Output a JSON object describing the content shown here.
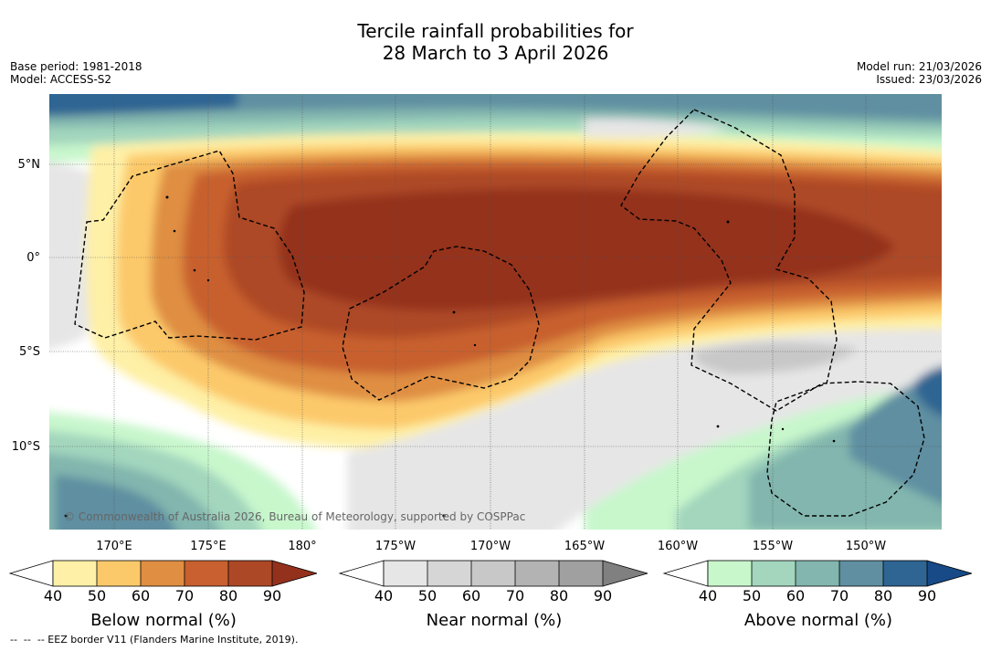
{
  "title": {
    "line1": "Tercile rainfall probabilities for",
    "line2": "28 March to 3 April 2026"
  },
  "meta": {
    "base_period": "Base period: 1981-2018",
    "model": "Model: ACCESS-S2",
    "model_run": "Model run: 21/03/2026",
    "issued": "Issued: 23/03/2026"
  },
  "map": {
    "lat_labels": [
      "5°N",
      "0°",
      "5°S",
      "10°S"
    ],
    "lon_labels": [
      "170°E",
      "175°E",
      "180°",
      "175°W",
      "170°W",
      "165°W",
      "160°W",
      "155°W",
      "150°W"
    ],
    "copyright": "© Commonwealth of Australia 2026, Bureau of Meteorology, supported by COSPPac",
    "ocean_color": "#ffffff",
    "grid_color": "#555555"
  },
  "colorbars": {
    "below": {
      "title": "Below normal (%)",
      "ticks": [
        "40",
        "50",
        "60",
        "70",
        "80",
        "90"
      ],
      "colors": [
        "#fef0a6",
        "#fcc96a",
        "#df8e42",
        "#c8602f",
        "#ad4826",
        "#94311d"
      ]
    },
    "near": {
      "title": "Near normal (%)",
      "ticks": [
        "40",
        "50",
        "60",
        "70",
        "80",
        "90"
      ],
      "colors": [
        "#e6e6e6",
        "#d6d6d6",
        "#c8c8c8",
        "#b3b3b3",
        "#a0a0a0",
        "#808080"
      ]
    },
    "above": {
      "title": "Above normal (%)",
      "ticks": [
        "40",
        "50",
        "60",
        "70",
        "80",
        "90"
      ],
      "colors": [
        "#c8f7cc",
        "#a3d6bd",
        "#82b6ae",
        "#5f8fa1",
        "#2f6593",
        "#174a86"
      ]
    }
  },
  "footnote": "--  --  -- EEZ border V11 (Flanders Marine Institute, 2019)."
}
